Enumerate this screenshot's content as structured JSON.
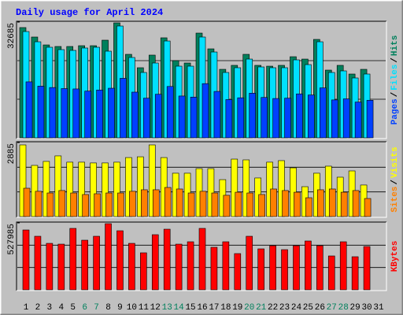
{
  "chart_data": [
    {
      "type": "bar",
      "title": "Daily usage for April 2024",
      "ylim": [
        0,
        32685
      ],
      "yticks": [
        32685
      ],
      "separator": "/",
      "series": [
        {
          "name": "Hits",
          "color": "#00805c",
          "values": [
            31130,
            28460,
            26230,
            25790,
            25790,
            26010,
            26010,
            27570,
            32460,
            23570,
            19790,
            23350,
            28240,
            21790,
            21120,
            29570,
            25120,
            19340,
            20460,
            23570,
            20460,
            20230,
            20460,
            22900,
            22230,
            27790,
            19120,
            20460,
            18010,
            19340,
            null
          ]
        },
        {
          "name": "Files",
          "color": "#00e0ff",
          "values": [
            30010,
            27120,
            25570,
            24900,
            24680,
            25350,
            25570,
            24460,
            31570,
            22680,
            18450,
            21120,
            27340,
            20230,
            20230,
            28460,
            24230,
            18450,
            19790,
            22230,
            20010,
            19790,
            19790,
            22010,
            20670,
            27120,
            18450,
            18900,
            16900,
            18010,
            null
          ]
        },
        {
          "name": "Pages",
          "color": "#0040ff",
          "values": [
            15800,
            14600,
            14200,
            13900,
            13800,
            13200,
            13500,
            14000,
            16800,
            12900,
            11200,
            12300,
            14500,
            11800,
            11500,
            15300,
            13100,
            10800,
            11300,
            12600,
            11400,
            11100,
            11200,
            12400,
            12100,
            14100,
            10700,
            11000,
            10100,
            10600,
            null
          ]
        }
      ]
    },
    {
      "type": "bar",
      "ylim": [
        0,
        2885
      ],
      "yticks": [
        2885
      ],
      "separator": "/",
      "series": [
        {
          "name": "Visits",
          "color": "#ffff00",
          "values": [
            2793,
            1995,
            2150,
            2365,
            2120,
            2120,
            2090,
            2090,
            2120,
            2300,
            2330,
            2793,
            2300,
            1690,
            1690,
            1870,
            1870,
            1440,
            2240,
            2210,
            1505,
            2120,
            2180,
            1900,
            1165,
            1690,
            1965,
            1535,
            1780,
            1230,
            null
          ]
        },
        {
          "name": "Sites",
          "color": "#ff8000",
          "values": [
            1105,
            985,
            920,
            1015,
            920,
            860,
            890,
            920,
            920,
            985,
            1045,
            1045,
            1135,
            1075,
            920,
            985,
            920,
            830,
            950,
            920,
            860,
            1075,
            1015,
            950,
            735,
            1045,
            1075,
            950,
            1015,
            705,
            null
          ]
        }
      ]
    },
    {
      "type": "bar",
      "ylim": [
        0,
        527985
      ],
      "yticks": [
        527985
      ],
      "categories": [
        "1",
        "2",
        "3",
        "4",
        "5",
        "6",
        "7",
        "8",
        "9",
        "10",
        "11",
        "12",
        "13",
        "14",
        "15",
        "16",
        "17",
        "18",
        "19",
        "20",
        "21",
        "22",
        "23",
        "24",
        "25",
        "26",
        "27",
        "28",
        "29",
        "30",
        "31"
      ],
      "category_colors": [
        "#000000",
        "#000000",
        "#000000",
        "#000000",
        "#000000",
        "#00805c",
        "#00805c",
        "#000000",
        "#000000",
        "#000000",
        "#000000",
        "#000000",
        "#00805c",
        "#00805c",
        "#000000",
        "#000000",
        "#000000",
        "#000000",
        "#000000",
        "#00805c",
        "#00805c",
        "#000000",
        "#000000",
        "#000000",
        "#000000",
        "#000000",
        "#00805c",
        "#00805c",
        "#000000",
        "#000000",
        "#000000"
      ],
      "series": [
        {
          "name": "KBytes",
          "color": "#ff0000",
          "values": [
            472000,
            422300,
            366400,
            360200,
            484500,
            391300,
            422300,
            521700,
            465800,
            366400,
            291900,
            434800,
            478200,
            360200,
            378900,
            484500,
            335400,
            378900,
            285700,
            422300,
            323000,
            347800,
            316800,
            347800,
            385100,
            347800,
            267100,
            378900,
            260900,
            341600,
            null
          ]
        }
      ]
    }
  ]
}
